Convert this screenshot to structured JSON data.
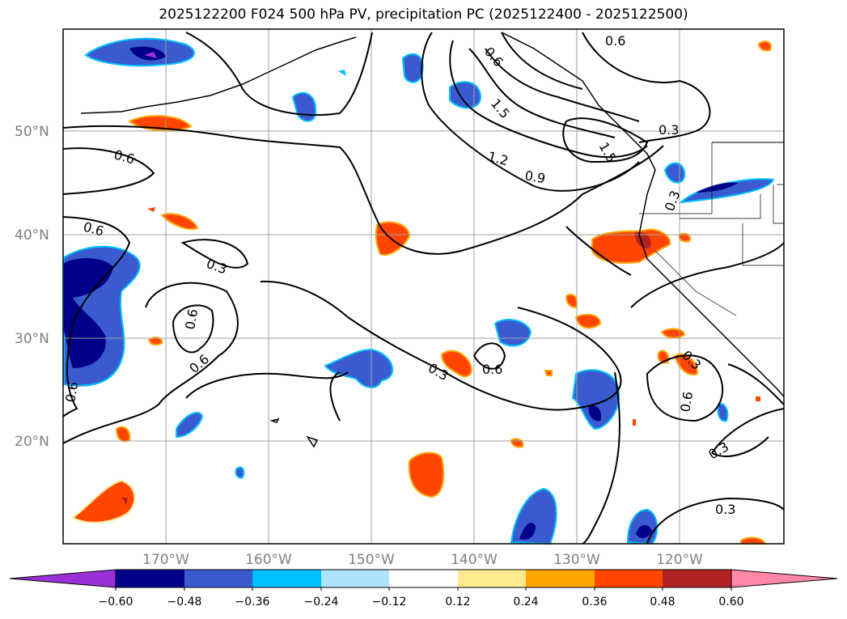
{
  "title": "2025122200 F024 500 hPa PV, precipitation PC (2025122400 - 2025122500)",
  "lat_labels": [
    "50°N",
    "40°N",
    "30°N",
    "20°N"
  ],
  "lon_labels": [
    "170°W",
    "160°W",
    "150°W",
    "140°W",
    "130°W",
    "120°W"
  ],
  "colorbar": {
    "ticks": [
      "−0.60",
      "−0.48",
      "−0.36",
      "−0.24",
      "−0.12",
      "0.12",
      "0.24",
      "0.36",
      "0.48",
      "0.60"
    ],
    "colors": [
      "#9b30d9",
      "#00008b",
      "#3a5bcf",
      "#00bfff",
      "#aee3fb",
      "#ffffff",
      "#ffe98f",
      "#ffa500",
      "#ff4500",
      "#b22222",
      "#ff88aa"
    ]
  },
  "contour_labels": [
    "0.6",
    "0.6",
    "0.6",
    "0.3",
    "0.6",
    "0.6",
    "0.6",
    "1.5",
    "1.2",
    "0.9",
    "1.5",
    "0.6",
    "0.3",
    "0.3",
    "0.3",
    "0.6",
    "0.3",
    "0.6",
    "0.3",
    "0.3"
  ],
  "colors": {
    "positive": "#ff4500",
    "negative": "#3a5bcf",
    "contour": "#000000"
  }
}
